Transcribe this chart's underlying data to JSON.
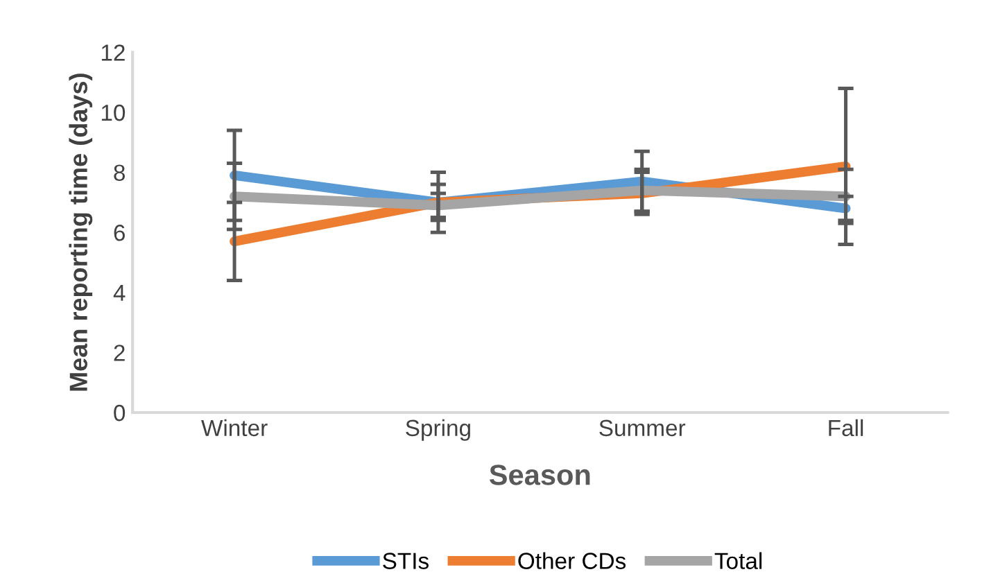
{
  "chart_data": {
    "type": "line",
    "xlabel": "Season",
    "ylabel": "Mean reporting time (days)",
    "categories": [
      "Winter",
      "Spring",
      "Summer",
      "Fall"
    ],
    "series": [
      {
        "name": "STIs",
        "color": "#5b9bd5",
        "values": [
          7.9,
          7.0,
          7.7,
          6.8
        ],
        "errors": [
          1.5,
          1.0,
          1.0,
          0.4
        ]
      },
      {
        "name": "Other CDs",
        "color": "#ed7d31",
        "values": [
          5.7,
          7.0,
          7.3,
          8.2
        ],
        "errors": [
          1.3,
          0.6,
          0.7,
          2.6
        ]
      },
      {
        "name": "Total",
        "color": "#a5a5a5",
        "values": [
          7.2,
          6.9,
          7.4,
          7.2
        ],
        "errors": [
          1.1,
          0.4,
          0.7,
          0.9
        ]
      }
    ],
    "ylim": [
      0,
      12
    ],
    "yticks": [
      0,
      2,
      4,
      6,
      8,
      10,
      12
    ],
    "grid": false,
    "legend": "bottom",
    "marker": "none",
    "line_style": "solid"
  }
}
